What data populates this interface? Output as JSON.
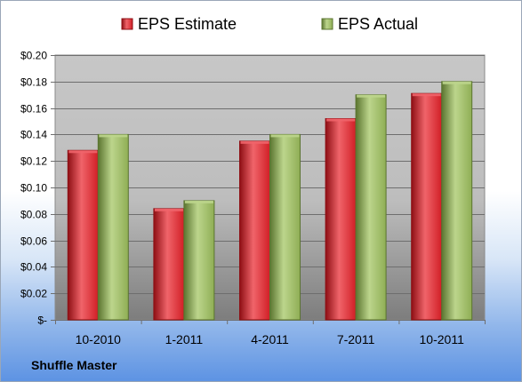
{
  "company_name": "Shuffle Master",
  "colors": {
    "estimate": "#d11f26",
    "estimate_light": "#f0646a",
    "estimate_dark": "#8e0f14",
    "actual": "#8fae55",
    "actual_light": "#bcd58c",
    "actual_dark": "#5b7530"
  },
  "chart_data": {
    "type": "bar",
    "categories": [
      "10-2010",
      "1-2011",
      "4-2011",
      "7-2011",
      "10-2011"
    ],
    "series": [
      {
        "name": "EPS Estimate",
        "values": [
          0.128,
          0.084,
          0.135,
          0.152,
          0.171
        ]
      },
      {
        "name": "EPS Actual",
        "values": [
          0.14,
          0.09,
          0.14,
          0.17,
          0.18
        ]
      }
    ],
    "ylim": [
      0,
      0.2
    ],
    "yticks": [
      0,
      0.02,
      0.04,
      0.06,
      0.08,
      0.1,
      0.12,
      0.14,
      0.16,
      0.18,
      0.2
    ],
    "ytick_labels": [
      "$-",
      "$0.02",
      "$0.04",
      "$0.06",
      "$0.08",
      "$0.10",
      "$0.12",
      "$0.14",
      "$0.16",
      "$0.18",
      "$0.20"
    ],
    "legend_position": "top",
    "grid": true
  }
}
